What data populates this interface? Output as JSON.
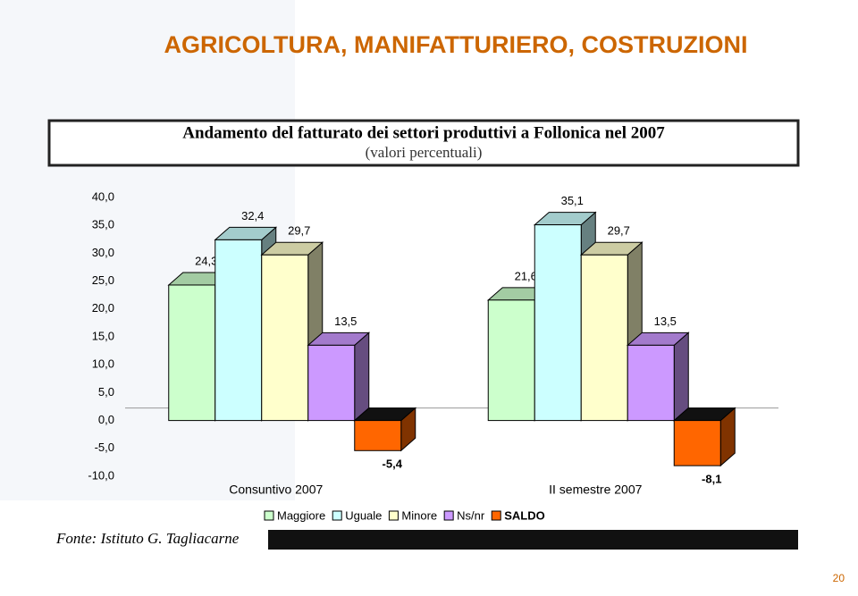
{
  "slide_title": "AGRICOLTURA, MANIFATTURIERO, COSTRUZIONI",
  "source": "Fonte: Istituto G. Tagliacarne",
  "page_number": "20",
  "chart_data": {
    "type": "bar",
    "title": "Andamento del fatturato dei settori produttivi a Follonica nel 2007",
    "subtitle": "(valori percentuali)",
    "categories": [
      "Consuntivo 2007",
      "II semestre 2007"
    ],
    "series": [
      {
        "name": "Maggiore",
        "color": "#ccffcc",
        "values": [
          24.3,
          21.6
        ],
        "value_labels": [
          "24,3",
          "21,6"
        ]
      },
      {
        "name": "Uguale",
        "color": "#ccffff",
        "values": [
          32.4,
          35.1
        ],
        "value_labels": [
          "32,4",
          "35,1"
        ]
      },
      {
        "name": "Minore",
        "color": "#ffffcc",
        "values": [
          29.7,
          29.7
        ],
        "value_labels": [
          "29,7",
          "29,7"
        ]
      },
      {
        "name": "Ns/nr",
        "color": "#cc99ff",
        "values": [
          13.5,
          13.5
        ],
        "value_labels": [
          "13,5",
          "13,5"
        ]
      },
      {
        "name": "SALDO",
        "color": "#ff6600",
        "values": [
          -5.4,
          -8.1
        ],
        "value_labels": [
          "-5,4",
          "-8,1"
        ]
      }
    ],
    "ylim": [
      -10,
      40
    ],
    "yticks": [
      {
        "value": -10,
        "label": "-10,0"
      },
      {
        "value": -5,
        "label": "-5,0"
      },
      {
        "value": 0,
        "label": "0,0"
      },
      {
        "value": 5,
        "label": "5,0"
      },
      {
        "value": 10,
        "label": "10,0"
      },
      {
        "value": 15,
        "label": "15,0"
      },
      {
        "value": 20,
        "label": "20,0"
      },
      {
        "value": 25,
        "label": "25,0"
      },
      {
        "value": 30,
        "label": "30,0"
      },
      {
        "value": 35,
        "label": "35,0"
      },
      {
        "value": 40,
        "label": "40,0"
      }
    ]
  }
}
